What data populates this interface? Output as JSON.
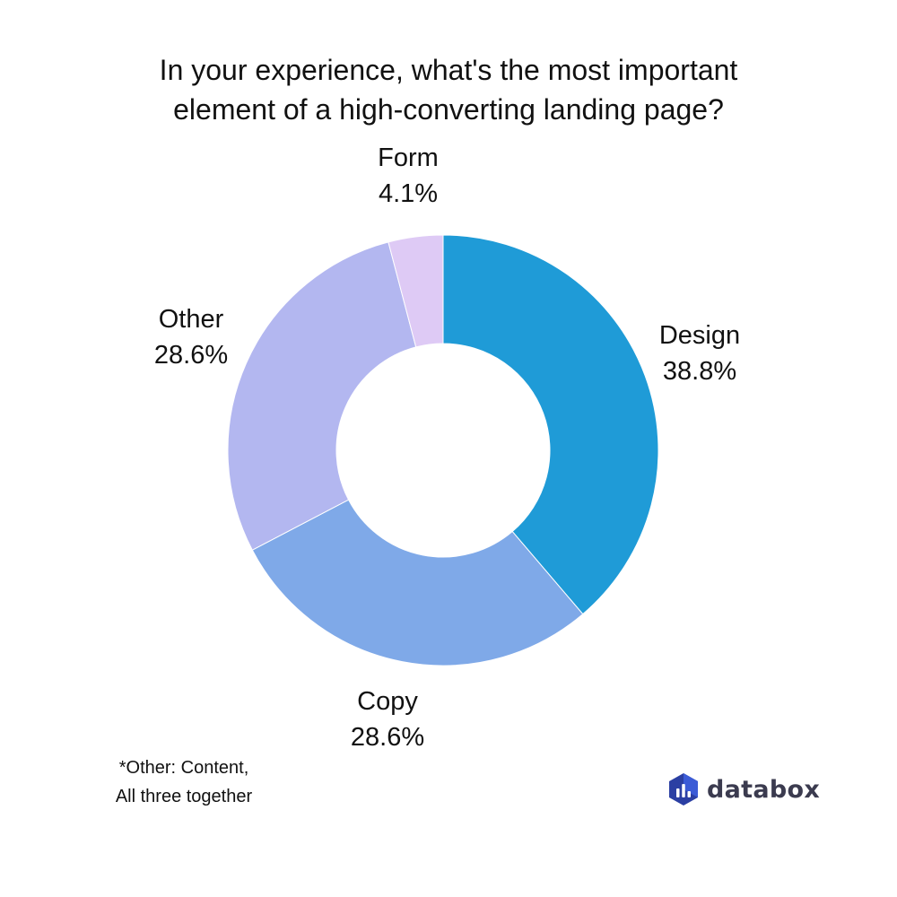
{
  "title": {
    "line1": "In your experience, what's the most important",
    "line2": "element of a high-converting landing page?"
  },
  "chart_data": {
    "type": "pie",
    "donut": true,
    "slices": [
      {
        "label": "Design",
        "value": 38.8,
        "display": "38.8%",
        "color": "#1f9bd7"
      },
      {
        "label": "Copy",
        "value": 28.6,
        "display": "28.6%",
        "color": "#7fa9e8"
      },
      {
        "label": "Other",
        "value": 28.6,
        "display": "28.6%",
        "color": "#b3b7f0"
      },
      {
        "label": "Form",
        "value": 4.1,
        "display": "4.1%",
        "color": "#decaf5"
      }
    ]
  },
  "footnote": {
    "line1": "*Other: Content,",
    "line2": "All three together"
  },
  "brand": {
    "name": "databox",
    "logo_icon": "databox-logo-icon"
  }
}
